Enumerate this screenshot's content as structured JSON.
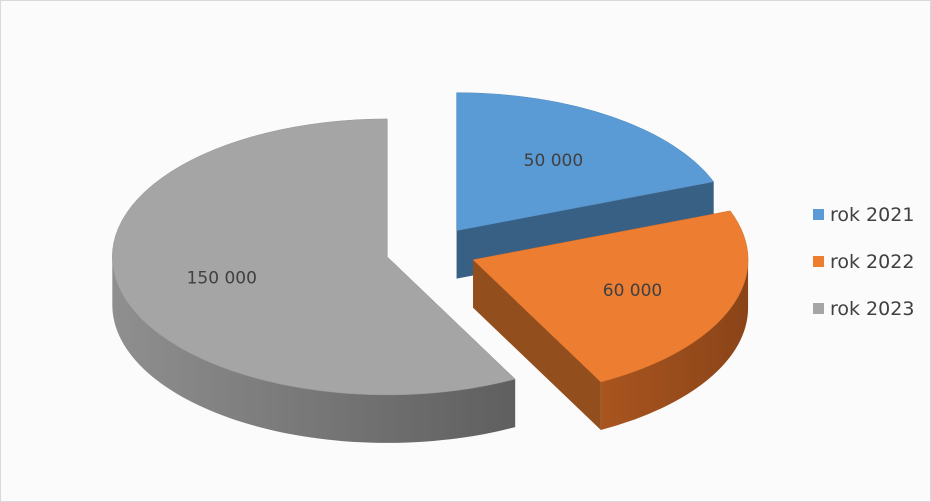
{
  "chart_data": {
    "type": "pie",
    "style": "3d-exploded",
    "categories": [
      "rok 2021",
      "rok 2022",
      "rok 2023"
    ],
    "values": [
      50000,
      60000,
      150000
    ],
    "data_labels": [
      "50 000",
      "60 000",
      "150 000"
    ],
    "colors": [
      "#5b9bd5",
      "#ed7d31",
      "#a5a5a5"
    ],
    "legend_position": "right",
    "title": ""
  }
}
